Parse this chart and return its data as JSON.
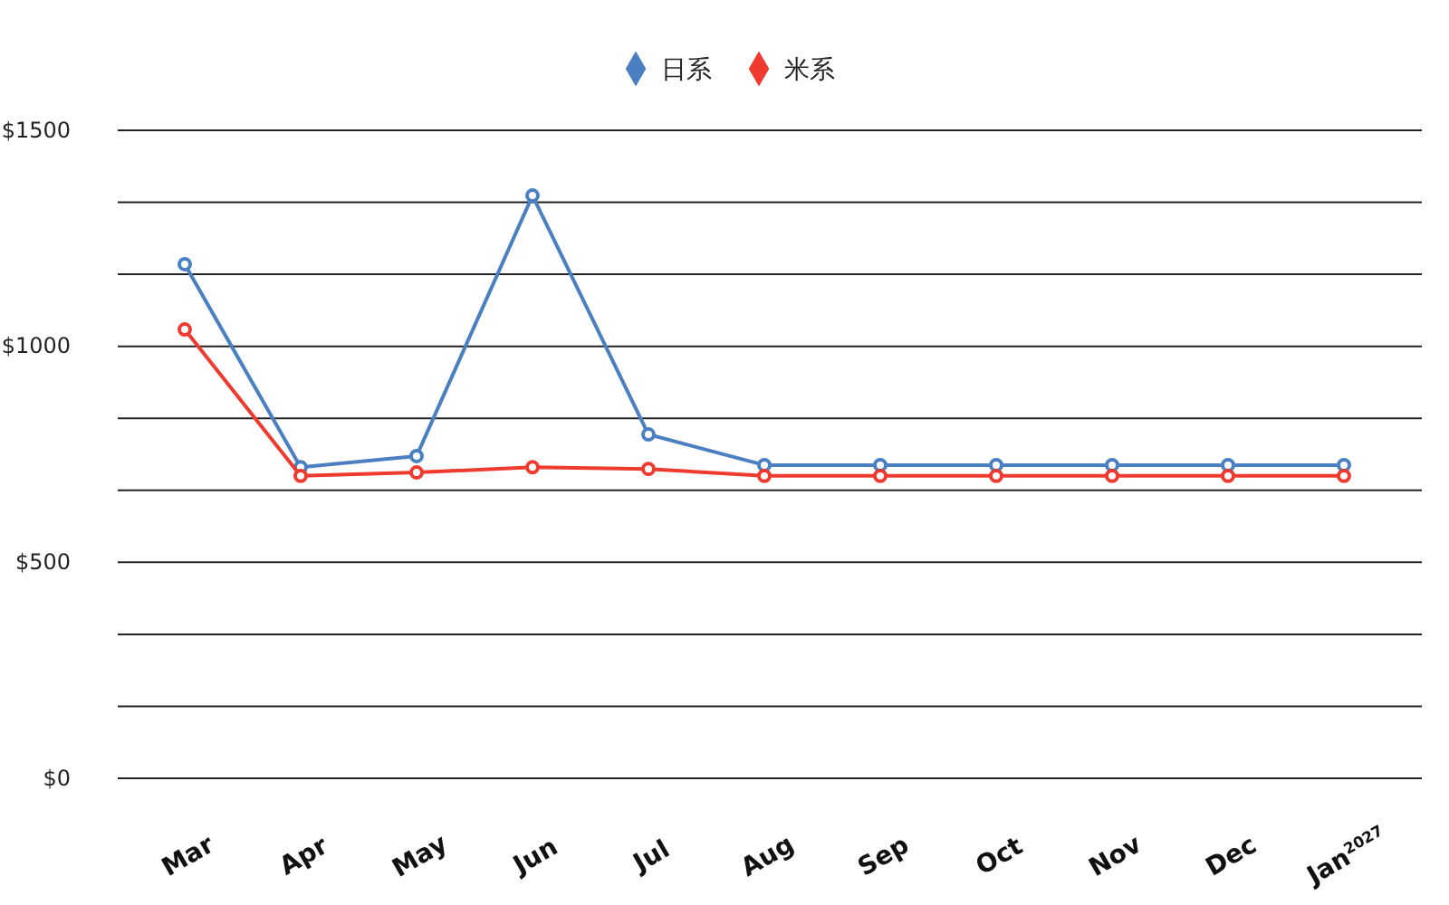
{
  "chart_data": {
    "type": "line",
    "categories": [
      "Mar",
      "Apr",
      "May",
      "Jun",
      "Jul",
      "Aug",
      "Sep",
      "Oct",
      "Nov",
      "Dec",
      "Jan$^{2027}$"
    ],
    "series": [
      {
        "name": "日系",
        "color": "#4a7fc1",
        "values": [
          1190,
          720,
          746,
          1349,
          796,
          725,
          725,
          725,
          725,
          725,
          725
        ]
      },
      {
        "name": "米系",
        "color": "#ee3a2f",
        "values": [
          1039,
          700,
          708,
          720,
          716,
          700,
          700,
          700,
          700,
          700,
          700
        ]
      }
    ],
    "ylim": [
      0,
      1500
    ],
    "yticks": [
      {
        "value": 0,
        "label": "$0"
      },
      {
        "value": 166.67,
        "label": null
      },
      {
        "value": 333.33,
        "label": null
      },
      {
        "value": 500,
        "label": "$500"
      },
      {
        "value": 666.67,
        "label": null
      },
      {
        "value": 833.33,
        "label": null
      },
      {
        "value": 1000,
        "label": "$1000"
      },
      {
        "value": 1166.67,
        "label": null
      },
      {
        "value": 1333.33,
        "label": null
      },
      {
        "value": 1500,
        "label": "$1500"
      }
    ],
    "grid": "y",
    "legend": "top",
    "marker": "circle",
    "line_style": "solid"
  }
}
